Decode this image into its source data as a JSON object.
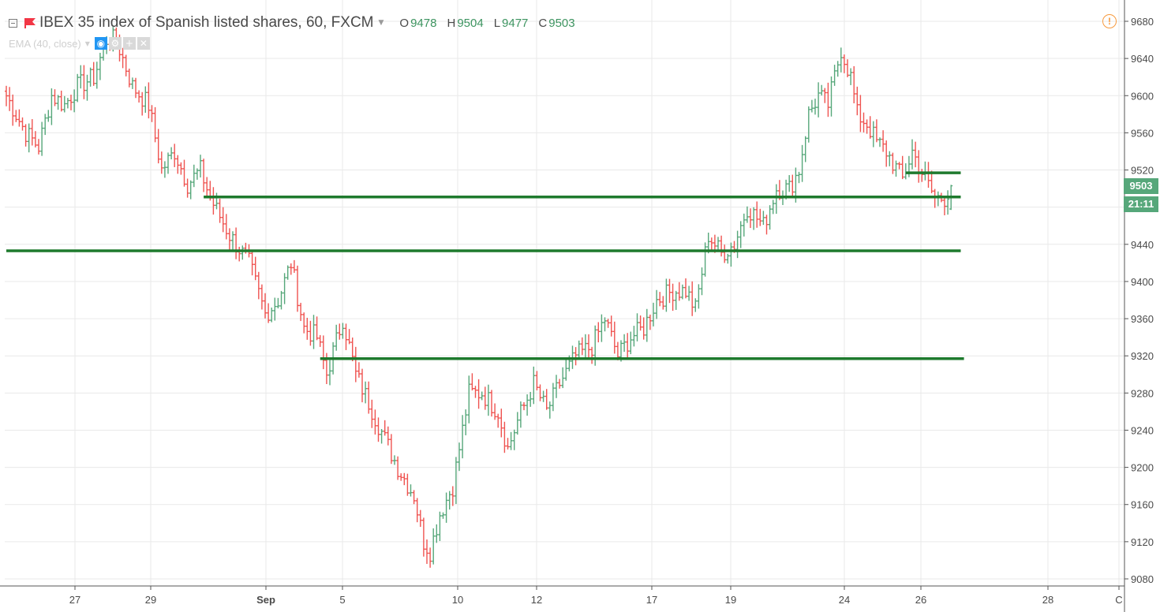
{
  "header": {
    "title": "IBEX 35 index of Spanish listed shares, 60, FXCM",
    "ohlc": [
      {
        "key": "O",
        "value": "9478"
      },
      {
        "key": "H",
        "value": "9504"
      },
      {
        "key": "L",
        "value": "9477"
      },
      {
        "key": "C",
        "value": "9503"
      }
    ]
  },
  "indicator": {
    "label": "EMA (40, close)"
  },
  "alert": {
    "symbol": "!"
  },
  "price_tag": {
    "price": "9503",
    "countdown": "21:11"
  },
  "colors": {
    "up": "#56a77a",
    "down": "#ef5350",
    "level_line": "#1e7a2d",
    "grid": "#e9e9e9",
    "axis_text": "#4a4a4a",
    "alert": "#f79a3e"
  },
  "chart_data": {
    "type": "bar",
    "title": "IBEX 35 index of Spanish listed shares, 60, FXCM",
    "x_ticks": [
      "27",
      "29",
      "Sep",
      "5",
      "10",
      "12",
      "17",
      "19",
      "24",
      "26",
      "28",
      "C"
    ],
    "y_ticks": [
      9080,
      9120,
      9160,
      9200,
      9240,
      9280,
      9320,
      9360,
      9400,
      9440,
      9480,
      9520,
      9560,
      9600,
      9640,
      9680
    ],
    "ylim": [
      9075,
      9685
    ],
    "grid": true,
    "series_shape": "ohlc bars, hourly",
    "last_bar": {
      "open": 9478,
      "high": 9504,
      "low": 9477,
      "close": 9503
    },
    "anchor_closes": [
      [
        0,
        9600
      ],
      [
        6,
        9560
      ],
      [
        10,
        9545
      ],
      [
        14,
        9600
      ],
      [
        18,
        9590
      ],
      [
        22,
        9610
      ],
      [
        27,
        9620
      ],
      [
        31,
        9660
      ],
      [
        34,
        9660
      ],
      [
        36,
        9640
      ],
      [
        39,
        9610
      ],
      [
        44,
        9590
      ],
      [
        48,
        9520
      ],
      [
        52,
        9540
      ],
      [
        56,
        9505
      ],
      [
        60,
        9520
      ],
      [
        63,
        9490
      ],
      [
        69,
        9450
      ],
      [
        75,
        9420
      ],
      [
        80,
        9365
      ],
      [
        84,
        9380
      ],
      [
        88,
        9420
      ],
      [
        92,
        9350
      ],
      [
        96,
        9340
      ],
      [
        99,
        9300
      ],
      [
        104,
        9360
      ],
      [
        108,
        9300
      ],
      [
        112,
        9270
      ],
      [
        117,
        9230
      ],
      [
        121,
        9200
      ],
      [
        126,
        9170
      ],
      [
        129,
        9120
      ],
      [
        131,
        9110
      ],
      [
        134,
        9150
      ],
      [
        138,
        9180
      ],
      [
        143,
        9280
      ],
      [
        147,
        9280
      ],
      [
        152,
        9260
      ],
      [
        155,
        9220
      ],
      [
        158,
        9250
      ],
      [
        163,
        9290
      ],
      [
        167,
        9260
      ],
      [
        171,
        9290
      ],
      [
        176,
        9320
      ],
      [
        181,
        9330
      ],
      [
        185,
        9360
      ],
      [
        189,
        9320
      ],
      [
        193,
        9340
      ],
      [
        197,
        9350
      ],
      [
        201,
        9380
      ],
      [
        206,
        9390
      ],
      [
        210,
        9390
      ],
      [
        213,
        9370
      ],
      [
        217,
        9450
      ],
      [
        221,
        9430
      ],
      [
        225,
        9440
      ],
      [
        229,
        9480
      ],
      [
        234,
        9460
      ],
      [
        238,
        9500
      ],
      [
        242,
        9500
      ],
      [
        245,
        9520
      ],
      [
        248,
        9580
      ],
      [
        251,
        9600
      ],
      [
        254,
        9590
      ],
      [
        258,
        9650
      ],
      [
        261,
        9620
      ],
      [
        263,
        9580
      ],
      [
        266,
        9570
      ],
      [
        269,
        9550
      ],
      [
        272,
        9540
      ],
      [
        277,
        9510
      ],
      [
        280,
        9540
      ],
      [
        284,
        9510
      ],
      [
        287,
        9490
      ],
      [
        290,
        9490
      ],
      [
        292,
        9503
      ]
    ],
    "horizontal_levels": [
      {
        "price": 9491,
        "x_start": 61,
        "x_end": 295
      },
      {
        "price": 9433,
        "x_start": 0,
        "x_end": 295
      },
      {
        "price": 9317,
        "x_start": 97,
        "x_end": 296
      },
      {
        "price": 9517,
        "x_start": 278,
        "x_end": 295
      }
    ]
  }
}
